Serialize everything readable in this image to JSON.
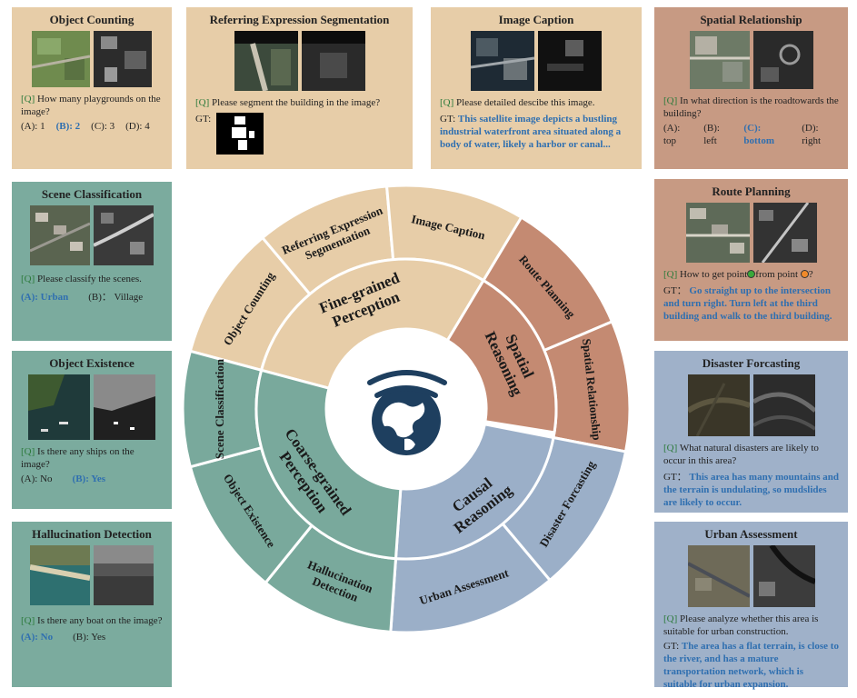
{
  "cards": {
    "object_counting": {
      "title": "Object Counting",
      "q_tag": "[Q]",
      "question": "How many playgrounds on the image?",
      "options": [
        "(A): 1",
        "(B): 2",
        "(C): 3",
        "(D): 4"
      ],
      "answer_index": 1
    },
    "referring": {
      "title": "Referring Expression Segmentation",
      "q_tag": "[Q]",
      "question": "Please segment the building in the image?",
      "gt_tag": "GT:"
    },
    "image_caption": {
      "title": "Image Caption",
      "q_tag": "[Q]",
      "question": "Please detailed descibe this image.",
      "gt_tag": "GT:",
      "gt": "This satellite image depicts a bustling industrial waterfront area situated along a body of water, likely a harbor or canal..."
    },
    "spatial_relationship": {
      "title": "Spatial Relationship",
      "q_tag": "[Q]",
      "question": "In what direction is the roadtowards the building?",
      "options": [
        "(A): top",
        "(B): left",
        "(C): bottom",
        "(D): right"
      ],
      "answer_index": 2
    },
    "scene_classification": {
      "title": "Scene Classification",
      "q_tag": "[Q]",
      "question": "Please classify the scenes.",
      "options": [
        "(A): Urban",
        "(B)： Village"
      ],
      "answer_index": 0
    },
    "route_planning": {
      "title": "Route Planning",
      "q_tag": "[Q]",
      "question_a": "How to get point",
      "question_b": "from point",
      "question_c": "?",
      "gt_tag": "GT：",
      "gt": "Go straight up to the intersection and turn right. Turn left at the third building and walk to the third building."
    },
    "object_existence": {
      "title": "Object Existence",
      "q_tag": "[Q]",
      "question": "Is there any ships on the image?",
      "options": [
        "(A): No",
        "(B): Yes"
      ],
      "answer_index": 1
    },
    "disaster_forecasting": {
      "title": "Disaster Forcasting",
      "q_tag": "[Q]",
      "question": "What natural disasters are likely to occur in this area?",
      "gt_tag": "GT：",
      "gt": "This area has many mountains and the terrain is undulating, so mudslides are likely to occur."
    },
    "hallucination_detection": {
      "title": "Hallucination Detection",
      "q_tag": "[Q]",
      "question": "Is there any boat on the image?",
      "options": [
        "(A): No",
        "(B): Yes"
      ],
      "answer_index": 0
    },
    "urban_assessment": {
      "title": "Urban Assessment",
      "q_tag": "[Q]",
      "question": "Please analyze whether this area is suitable for urban construction.",
      "gt_tag": "GT:",
      "gt": "The area has a flat terrain, is close to the river, and has a mature transportation network, which is suitable for urban expansion."
    }
  },
  "wheel": {
    "groups": [
      {
        "label_lines": [
          "Fine-grained",
          "Perception"
        ],
        "color": "#e7cda8"
      },
      {
        "label_lines": [
          "Spatial",
          "Reasoning"
        ],
        "color": "#c48a72"
      },
      {
        "label_lines": [
          "Causal",
          "Reasoning"
        ],
        "color": "#9bafc8"
      },
      {
        "label_lines": [
          "Coarse-grained",
          "Perception"
        ],
        "color": "#79a99c"
      }
    ],
    "tasks": [
      {
        "label_lines": [
          "Object Counting"
        ],
        "group": 0
      },
      {
        "label_lines": [
          "Referring Expression",
          "Segmentation"
        ],
        "group": 0
      },
      {
        "label_lines": [
          "Image Caption"
        ],
        "group": 0
      },
      {
        "label_lines": [
          "Route Planning"
        ],
        "group": 1
      },
      {
        "label_lines": [
          "Spatial Relationship"
        ],
        "group": 1
      },
      {
        "label_lines": [
          "Disaster Forcasting"
        ],
        "group": 2
      },
      {
        "label_lines": [
          "Urban Assessment"
        ],
        "group": 2
      },
      {
        "label_lines": [
          "Hallucination",
          "Detection"
        ],
        "group": 3
      },
      {
        "label_lines": [
          "Object Existence"
        ],
        "group": 3
      },
      {
        "label_lines": [
          "Scene Classification"
        ],
        "group": 3
      }
    ]
  },
  "colors": {
    "question_tag": "#2c7a3b",
    "highlight": "#2f6fb0",
    "logo": "#1e3f5f",
    "point_green": "#3aa83a",
    "point_orange": "#f08a2a"
  }
}
